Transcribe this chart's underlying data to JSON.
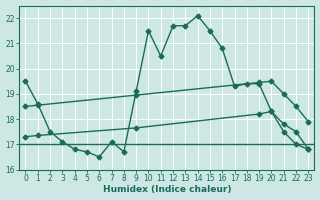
{
  "xlabel": "Humidex (Indice chaleur)",
  "bg_color": "#cde8e4",
  "line_color": "#1a6b5a",
  "grid_color": "#b8d8d4",
  "xlim": [
    -0.5,
    23.5
  ],
  "ylim": [
    16,
    22.5
  ],
  "yticks": [
    16,
    17,
    18,
    19,
    20,
    21,
    22
  ],
  "xticks": [
    0,
    1,
    2,
    3,
    4,
    5,
    6,
    7,
    8,
    9,
    10,
    11,
    12,
    13,
    14,
    15,
    16,
    17,
    18,
    19,
    20,
    21,
    22,
    23
  ],
  "main_x": [
    0,
    1,
    2,
    3,
    4,
    5,
    6,
    7,
    8,
    9,
    10,
    11,
    12,
    13,
    14,
    15,
    16,
    17,
    18,
    19,
    20,
    21,
    22,
    23
  ],
  "main_y": [
    19.5,
    18.6,
    17.5,
    17.1,
    16.8,
    16.7,
    16.5,
    17.1,
    16.7,
    19.1,
    21.5,
    20.5,
    21.7,
    21.7,
    22.1,
    21.5,
    20.8,
    19.3,
    19.4,
    19.4,
    18.3,
    17.8,
    17.5,
    16.8
  ],
  "trend1_x": [
    0,
    1,
    9,
    19,
    20,
    21,
    22,
    23
  ],
  "trend1_y": [
    18.5,
    18.55,
    18.95,
    19.45,
    19.5,
    19.0,
    18.5,
    17.9
  ],
  "trend2_x": [
    0,
    1,
    9,
    19,
    20,
    21,
    22,
    23
  ],
  "trend2_y": [
    17.3,
    17.35,
    17.65,
    18.2,
    18.3,
    17.5,
    17.0,
    16.8
  ],
  "hline_y": 17.0,
  "lw": 1.0,
  "ms": 2.5
}
